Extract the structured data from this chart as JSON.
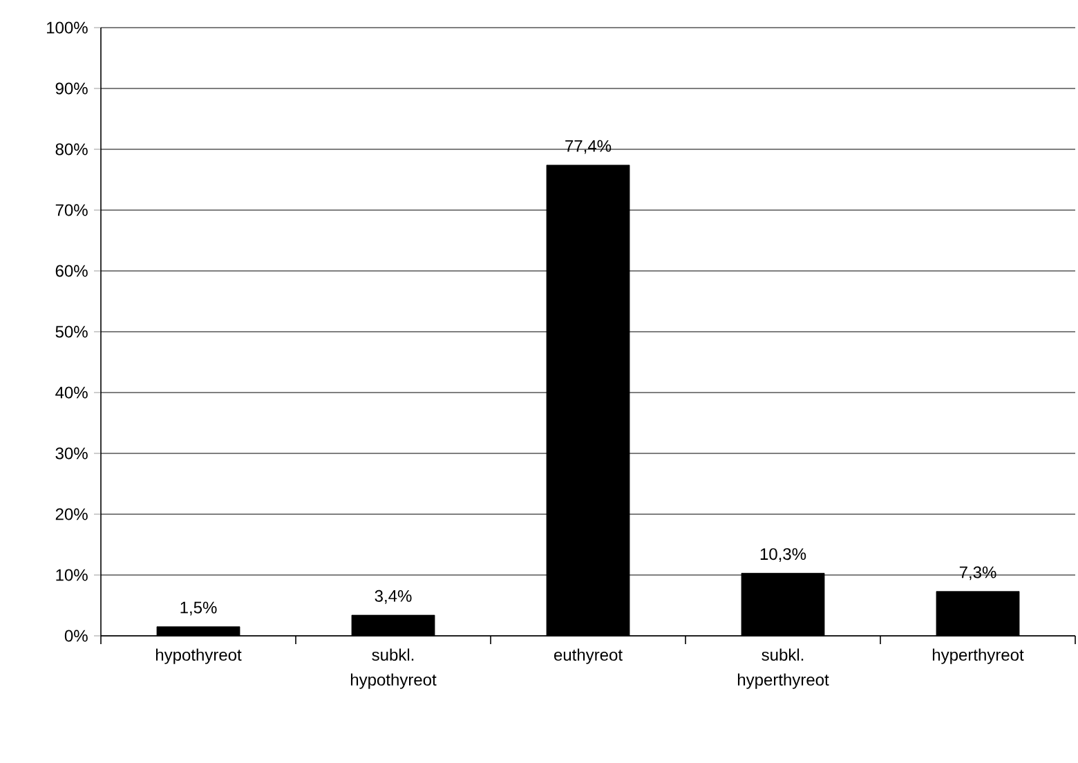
{
  "chart_data": {
    "type": "bar",
    "categories": [
      "hypothyreot",
      "subkl. hypothyreot",
      "euthyreot",
      "subkl. hyperthyreot",
      "hyperthyreot"
    ],
    "values": [
      1.5,
      3.4,
      77.4,
      10.3,
      7.3
    ],
    "value_labels": [
      "1,5%",
      "3,4%",
      "77,4%",
      "10,3%",
      "7,3%"
    ],
    "color": "#000000",
    "ylim": [
      0,
      100
    ],
    "yticks": [
      {
        "value": 0,
        "label": "0%"
      },
      {
        "value": 10,
        "label": "10%"
      },
      {
        "value": 20,
        "label": "20%"
      },
      {
        "value": 30,
        "label": "30%"
      },
      {
        "value": 40,
        "label": "40%"
      },
      {
        "value": 50,
        "label": "50%"
      },
      {
        "value": 60,
        "label": "60%"
      },
      {
        "value": 70,
        "label": "70%"
      },
      {
        "value": 80,
        "label": "80%"
      },
      {
        "value": 90,
        "label": "90%"
      },
      {
        "value": 100,
        "label": "100%"
      }
    ],
    "grid": "y"
  }
}
